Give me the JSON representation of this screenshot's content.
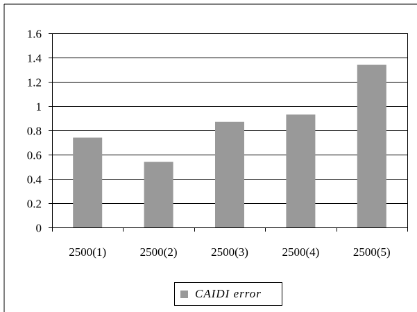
{
  "chart_data": {
    "type": "bar",
    "categories": [
      "2500(1)",
      "2500(2)",
      "2500(3)",
      "2500(4)",
      "2500(5)"
    ],
    "series": [
      {
        "name": "CAIDI error",
        "values": [
          0.74,
          0.54,
          0.87,
          0.93,
          1.34
        ]
      }
    ],
    "yticks": [
      "0",
      "0.2",
      "0.4",
      "0.6",
      "0.8",
      "1",
      "1.2",
      "1.4",
      "1.6"
    ],
    "ylim": [
      0,
      1.6
    ],
    "grid": true,
    "legend_position": "bottom",
    "colors": {
      "bar": "#999999",
      "grid": "#000000",
      "background": "#ffffff"
    }
  }
}
